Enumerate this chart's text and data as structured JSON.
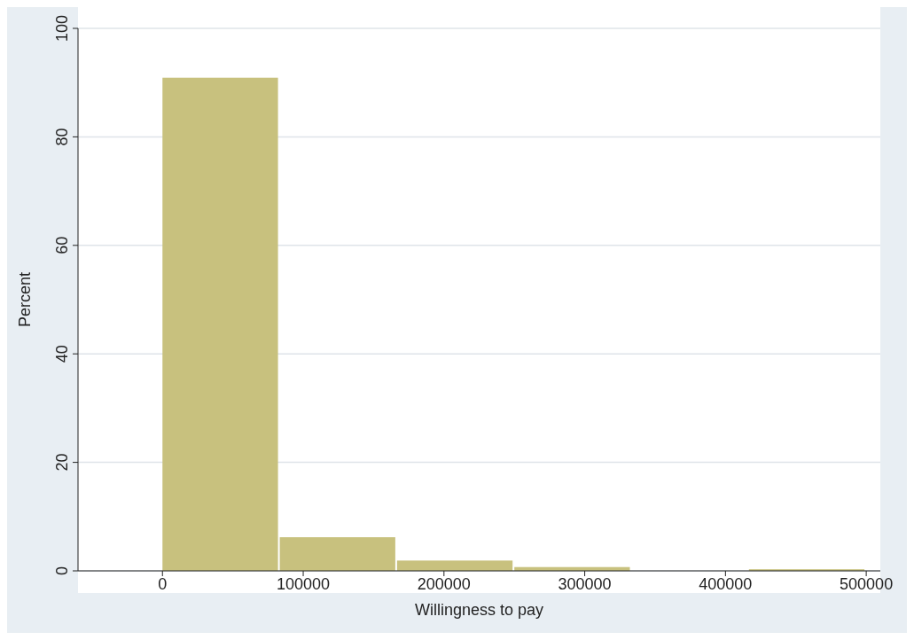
{
  "chart_data": {
    "type": "histogram",
    "xlabel": "Willingness to pay",
    "ylabel": "Percent",
    "bins": [
      0,
      83333,
      166667,
      250000,
      333333,
      416667,
      500000
    ],
    "values": [
      90.9,
      6.2,
      1.9,
      0.7,
      0,
      0.3
    ],
    "color": "#c8c17e",
    "xlim": [
      -60000,
      510000
    ],
    "xticks": [
      0,
      100000,
      200000,
      300000,
      400000,
      500000
    ],
    "ylim": [
      0,
      100
    ],
    "yticks": [
      0,
      20,
      40,
      60,
      80,
      100
    ],
    "grid": "y"
  }
}
